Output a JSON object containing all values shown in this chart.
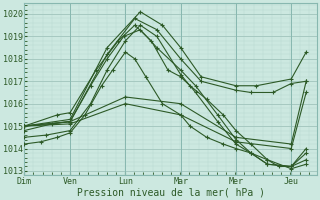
{
  "xlabel": "Pression niveau de la mer( hPa )",
  "bg_color": "#cce8e0",
  "grid_color_minor": "#b8d8d0",
  "grid_color_major": "#a0c4bc",
  "line_color": "#2d5a27",
  "ylim": [
    1012.8,
    1020.5
  ],
  "xlim": [
    0,
    5.3
  ],
  "yticks": [
    1013,
    1014,
    1015,
    1016,
    1017,
    1018,
    1019,
    1020
  ],
  "day_labels": [
    "Dim",
    "Ven",
    "Lun",
    "Mar",
    "Mer",
    "Jeu"
  ],
  "day_positions": [
    0.0,
    0.83,
    1.83,
    2.83,
    3.83,
    4.83
  ],
  "lines": [
    {
      "x": [
        0.0,
        0.83,
        1.5,
        2.1,
        2.5,
        2.83,
        3.2,
        3.83,
        4.2,
        4.83,
        5.1
      ],
      "y": [
        1015.0,
        1015.3,
        1018.5,
        1020.1,
        1019.5,
        1018.5,
        1017.2,
        1016.8,
        1016.8,
        1017.1,
        1018.3
      ]
    },
    {
      "x": [
        0.0,
        0.83,
        1.5,
        2.0,
        2.4,
        2.83,
        3.2,
        3.83,
        4.1,
        4.5,
        4.83,
        5.1
      ],
      "y": [
        1015.0,
        1015.2,
        1018.2,
        1019.8,
        1019.3,
        1018.0,
        1017.0,
        1016.6,
        1016.5,
        1016.5,
        1016.9,
        1017.0
      ]
    },
    {
      "x": [
        0.0,
        0.6,
        0.83,
        1.3,
        1.7,
        2.0,
        2.3,
        2.6,
        2.83,
        3.0,
        3.3,
        3.6,
        3.83,
        4.1,
        4.4,
        4.6,
        4.83,
        5.1
      ],
      "y": [
        1015.0,
        1015.5,
        1015.6,
        1017.5,
        1018.8,
        1019.5,
        1018.8,
        1017.5,
        1017.2,
        1016.8,
        1016.2,
        1015.5,
        1014.8,
        1014.2,
        1013.5,
        1013.2,
        1013.2,
        1013.5
      ]
    },
    {
      "x": [
        0.0,
        0.5,
        0.83,
        1.2,
        1.5,
        1.8,
        2.1,
        2.4,
        2.83,
        3.1,
        3.5,
        3.83,
        4.1,
        4.4,
        4.83,
        5.1
      ],
      "y": [
        1014.8,
        1015.1,
        1015.2,
        1016.8,
        1018.0,
        1019.0,
        1019.3,
        1018.5,
        1017.5,
        1016.8,
        1015.5,
        1014.4,
        1013.8,
        1013.3,
        1013.2,
        1013.8
      ]
    },
    {
      "x": [
        0.0,
        0.83,
        1.83,
        2.83,
        3.83,
        4.83,
        5.1
      ],
      "y": [
        1015.0,
        1015.2,
        1016.3,
        1016.0,
        1014.5,
        1014.2,
        1017.0
      ]
    },
    {
      "x": [
        0.0,
        0.83,
        1.83,
        2.83,
        3.83,
        4.83,
        5.1
      ],
      "y": [
        1015.0,
        1015.1,
        1016.0,
        1015.5,
        1014.3,
        1014.0,
        1016.5
      ]
    },
    {
      "x": [
        0.0,
        0.4,
        0.83,
        1.2,
        1.5,
        1.83,
        2.1,
        2.4,
        2.83,
        3.1,
        3.5,
        3.83,
        4.1,
        4.4,
        4.83,
        5.1
      ],
      "y": [
        1014.5,
        1014.6,
        1014.8,
        1016.0,
        1017.5,
        1018.8,
        1019.5,
        1019.0,
        1017.3,
        1016.5,
        1015.2,
        1014.2,
        1013.8,
        1013.3,
        1013.2,
        1014.0
      ]
    },
    {
      "x": [
        0.0,
        0.3,
        0.6,
        0.83,
        1.1,
        1.4,
        1.6,
        1.83,
        2.0,
        2.2,
        2.5,
        2.83,
        3.0,
        3.3,
        3.6,
        3.83,
        4.1,
        4.4,
        4.83,
        5.1
      ],
      "y": [
        1014.2,
        1014.3,
        1014.5,
        1014.7,
        1015.5,
        1016.8,
        1017.5,
        1018.3,
        1018.0,
        1017.2,
        1016.0,
        1015.5,
        1015.0,
        1014.5,
        1014.2,
        1014.0,
        1013.8,
        1013.5,
        1013.1,
        1013.3
      ]
    }
  ]
}
